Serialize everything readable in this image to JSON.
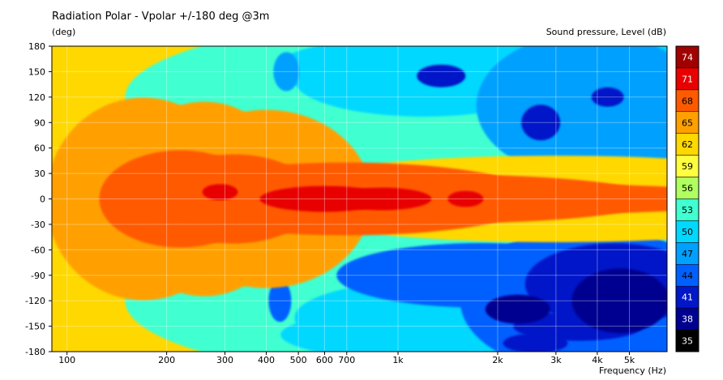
{
  "chart_data": {
    "type": "heatmap",
    "title": "Radiation Polar - Vpolar +/-180 deg @3m",
    "ylabel": "(deg)",
    "zlabel": "Sound pressure, Level  (dB)",
    "xlabel": "Frequency  (Hz)",
    "x_scale": "log",
    "xlim": [
      90,
      6500
    ],
    "ylim": [
      -180,
      180
    ],
    "x_ticks": [
      {
        "value": 100,
        "label": "100"
      },
      {
        "value": 200,
        "label": "200"
      },
      {
        "value": 300,
        "label": "300"
      },
      {
        "value": 400,
        "label": "400"
      },
      {
        "value": 500,
        "label": "500"
      },
      {
        "value": 600,
        "label": "600"
      },
      {
        "value": 700,
        "label": "700"
      },
      {
        "value": 1000,
        "label": "1k"
      },
      {
        "value": 2000,
        "label": "2k"
      },
      {
        "value": 3000,
        "label": "3k"
      },
      {
        "value": 4000,
        "label": "4k"
      },
      {
        "value": 5000,
        "label": "5k"
      }
    ],
    "y_ticks": [
      180,
      150,
      120,
      90,
      60,
      30,
      0,
      -30,
      -60,
      -90,
      -120,
      -150,
      -180
    ],
    "colorbar": {
      "levels": [
        74,
        71,
        68,
        65,
        62,
        59,
        56,
        53,
        50,
        47,
        44,
        41,
        38,
        35
      ],
      "colors": [
        "#a00000",
        "#e80000",
        "#ff5a00",
        "#ffa000",
        "#ffd800",
        "#ffff40",
        "#b0ff60",
        "#40ffd0",
        "#00d8ff",
        "#00a0ff",
        "#0060ff",
        "#0018c8",
        "#000090",
        "#000000"
      ]
    },
    "grid": true
  }
}
